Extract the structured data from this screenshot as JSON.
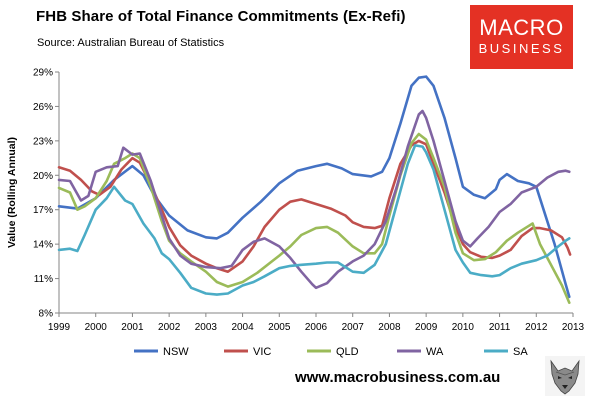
{
  "header": {
    "title": "FHB Share of Total Finance Commitments (Ex-Refi)",
    "subtitle": "Source: Australian Bureau of Statistics"
  },
  "logo": {
    "line1": "MACRO",
    "line2": "BUSINESS",
    "color": "#e43124"
  },
  "footer": {
    "url": "www.macrobusiness.com.au",
    "wolf_icon": "wolf-head-icon"
  },
  "chart_data": {
    "type": "line",
    "ylabel": "Value (Rolling Annual)",
    "xlim": [
      1999,
      2013
    ],
    "ylim": [
      8,
      29
    ],
    "x_ticks": [
      1999,
      2000,
      2001,
      2002,
      2003,
      2004,
      2005,
      2006,
      2007,
      2008,
      2009,
      2010,
      2011,
      2012,
      2013
    ],
    "x_tick_labels": [
      "1999",
      "2000",
      "2001",
      "2002",
      "2003",
      "2004",
      "2005",
      "2006",
      "2007",
      "2008",
      "2009",
      "2010",
      "2011",
      "2012",
      "2013"
    ],
    "y_ticks": [
      8,
      11,
      14,
      17,
      20,
      23,
      26,
      29
    ],
    "y_tick_labels": [
      "8%",
      "11%",
      "14%",
      "17%",
      "20%",
      "23%",
      "26%",
      "29%"
    ],
    "grid": false,
    "legend_position": "bottom",
    "series": [
      {
        "name": "NSW",
        "color": "#4472c4",
        "points": [
          [
            1999.0,
            17.3
          ],
          [
            1999.5,
            17.1
          ],
          [
            2000.0,
            18.0
          ],
          [
            2000.5,
            19.6
          ],
          [
            2001.0,
            20.8
          ],
          [
            2001.3,
            20.0
          ],
          [
            2001.6,
            18.2
          ],
          [
            2002.0,
            16.5
          ],
          [
            2002.5,
            15.2
          ],
          [
            2003.0,
            14.6
          ],
          [
            2003.3,
            14.5
          ],
          [
            2003.6,
            15.0
          ],
          [
            2004.0,
            16.3
          ],
          [
            2004.5,
            17.7
          ],
          [
            2005.0,
            19.3
          ],
          [
            2005.5,
            20.4
          ],
          [
            2006.0,
            20.8
          ],
          [
            2006.3,
            21.0
          ],
          [
            2006.7,
            20.6
          ],
          [
            2007.0,
            20.1
          ],
          [
            2007.5,
            19.9
          ],
          [
            2007.8,
            20.3
          ],
          [
            2008.0,
            21.5
          ],
          [
            2008.3,
            24.5
          ],
          [
            2008.6,
            27.8
          ],
          [
            2008.8,
            28.5
          ],
          [
            2009.0,
            28.6
          ],
          [
            2009.2,
            27.8
          ],
          [
            2009.5,
            25.0
          ],
          [
            2009.8,
            21.5
          ],
          [
            2010.0,
            19.0
          ],
          [
            2010.3,
            18.3
          ],
          [
            2010.6,
            18.0
          ],
          [
            2010.9,
            18.8
          ],
          [
            2011.0,
            19.6
          ],
          [
            2011.2,
            20.1
          ],
          [
            2011.5,
            19.5
          ],
          [
            2011.8,
            19.3
          ],
          [
            2012.0,
            19.0
          ],
          [
            2012.2,
            17.0
          ],
          [
            2012.5,
            14.0
          ],
          [
            2012.8,
            10.5
          ],
          [
            2012.9,
            9.4
          ]
        ]
      },
      {
        "name": "VIC",
        "color": "#c0504d",
        "points": [
          [
            1999.0,
            20.7
          ],
          [
            1999.3,
            20.4
          ],
          [
            1999.6,
            19.6
          ],
          [
            1999.9,
            18.6
          ],
          [
            2000.1,
            18.3
          ],
          [
            2000.4,
            19.0
          ],
          [
            2000.7,
            20.5
          ],
          [
            2001.0,
            21.5
          ],
          [
            2001.2,
            21.1
          ],
          [
            2001.5,
            19.2
          ],
          [
            2001.8,
            17.0
          ],
          [
            2002.0,
            15.5
          ],
          [
            2002.3,
            13.9
          ],
          [
            2002.6,
            13.0
          ],
          [
            2003.0,
            12.3
          ],
          [
            2003.3,
            11.9
          ],
          [
            2003.6,
            11.6
          ],
          [
            2004.0,
            12.5
          ],
          [
            2004.3,
            13.8
          ],
          [
            2004.6,
            15.5
          ],
          [
            2005.0,
            17.0
          ],
          [
            2005.3,
            17.7
          ],
          [
            2005.6,
            17.9
          ],
          [
            2006.0,
            17.5
          ],
          [
            2006.4,
            17.1
          ],
          [
            2006.8,
            16.5
          ],
          [
            2007.0,
            15.9
          ],
          [
            2007.3,
            15.5
          ],
          [
            2007.6,
            15.4
          ],
          [
            2007.8,
            15.6
          ],
          [
            2008.0,
            18.0
          ],
          [
            2008.3,
            21.0
          ],
          [
            2008.6,
            22.6
          ],
          [
            2008.8,
            23.0
          ],
          [
            2009.0,
            22.7
          ],
          [
            2009.2,
            21.0
          ],
          [
            2009.5,
            18.5
          ],
          [
            2009.8,
            15.5
          ],
          [
            2010.0,
            14.0
          ],
          [
            2010.2,
            13.3
          ],
          [
            2010.5,
            12.9
          ],
          [
            2010.8,
            12.8
          ],
          [
            2011.0,
            13.0
          ],
          [
            2011.3,
            13.5
          ],
          [
            2011.6,
            14.7
          ],
          [
            2011.9,
            15.4
          ],
          [
            2012.1,
            15.4
          ],
          [
            2012.4,
            15.2
          ],
          [
            2012.7,
            14.6
          ],
          [
            2012.85,
            13.7
          ],
          [
            2012.92,
            13.1
          ]
        ]
      },
      {
        "name": "QLD",
        "color": "#9bbb59",
        "points": [
          [
            1999.0,
            18.9
          ],
          [
            1999.3,
            18.5
          ],
          [
            1999.5,
            17.0
          ],
          [
            1999.7,
            17.3
          ],
          [
            2000.0,
            18.0
          ],
          [
            2000.3,
            19.5
          ],
          [
            2000.5,
            21.0
          ],
          [
            2000.8,
            21.5
          ],
          [
            2001.0,
            21.9
          ],
          [
            2001.2,
            21.5
          ],
          [
            2001.5,
            19.0
          ],
          [
            2001.8,
            16.0
          ],
          [
            2002.0,
            14.3
          ],
          [
            2002.3,
            13.2
          ],
          [
            2002.6,
            12.5
          ],
          [
            2003.0,
            11.6
          ],
          [
            2003.3,
            10.7
          ],
          [
            2003.6,
            10.3
          ],
          [
            2004.0,
            10.7
          ],
          [
            2004.4,
            11.5
          ],
          [
            2004.8,
            12.5
          ],
          [
            2005.0,
            13.0
          ],
          [
            2005.3,
            13.8
          ],
          [
            2005.6,
            14.8
          ],
          [
            2006.0,
            15.4
          ],
          [
            2006.3,
            15.5
          ],
          [
            2006.6,
            15.0
          ],
          [
            2007.0,
            13.8
          ],
          [
            2007.3,
            13.2
          ],
          [
            2007.6,
            13.2
          ],
          [
            2007.8,
            14.0
          ],
          [
            2008.0,
            16.5
          ],
          [
            2008.3,
            20.0
          ],
          [
            2008.6,
            22.8
          ],
          [
            2008.8,
            23.6
          ],
          [
            2009.0,
            23.1
          ],
          [
            2009.2,
            21.5
          ],
          [
            2009.5,
            19.0
          ],
          [
            2009.8,
            15.0
          ],
          [
            2010.0,
            13.2
          ],
          [
            2010.3,
            12.6
          ],
          [
            2010.6,
            12.7
          ],
          [
            2010.9,
            13.3
          ],
          [
            2011.2,
            14.3
          ],
          [
            2011.5,
            15.0
          ],
          [
            2011.8,
            15.6
          ],
          [
            2011.9,
            15.8
          ],
          [
            2012.1,
            14.0
          ],
          [
            2012.4,
            12.2
          ],
          [
            2012.7,
            10.4
          ],
          [
            2012.9,
            8.9
          ]
        ]
      },
      {
        "name": "WA",
        "color": "#8064a2",
        "points": [
          [
            1999.0,
            19.6
          ],
          [
            1999.3,
            19.5
          ],
          [
            1999.6,
            17.8
          ],
          [
            1999.8,
            18.2
          ],
          [
            2000.0,
            20.3
          ],
          [
            2000.3,
            20.7
          ],
          [
            2000.6,
            20.8
          ],
          [
            2000.75,
            22.4
          ],
          [
            2001.0,
            21.8
          ],
          [
            2001.2,
            21.9
          ],
          [
            2001.5,
            19.5
          ],
          [
            2001.8,
            16.5
          ],
          [
            2002.0,
            14.5
          ],
          [
            2002.3,
            13.0
          ],
          [
            2002.6,
            12.3
          ],
          [
            2003.0,
            12.0
          ],
          [
            2003.4,
            11.9
          ],
          [
            2003.7,
            12.1
          ],
          [
            2004.0,
            13.5
          ],
          [
            2004.3,
            14.2
          ],
          [
            2004.6,
            14.5
          ],
          [
            2005.0,
            13.8
          ],
          [
            2005.3,
            12.8
          ],
          [
            2005.6,
            11.6
          ],
          [
            2005.9,
            10.5
          ],
          [
            2006.0,
            10.2
          ],
          [
            2006.3,
            10.6
          ],
          [
            2006.6,
            11.6
          ],
          [
            2007.0,
            12.5
          ],
          [
            2007.3,
            13.0
          ],
          [
            2007.6,
            14.0
          ],
          [
            2007.9,
            16.0
          ],
          [
            2008.2,
            19.0
          ],
          [
            2008.5,
            22.5
          ],
          [
            2008.8,
            25.3
          ],
          [
            2008.9,
            25.6
          ],
          [
            2009.0,
            25.0
          ],
          [
            2009.2,
            23.0
          ],
          [
            2009.5,
            19.5
          ],
          [
            2009.8,
            16.0
          ],
          [
            2010.0,
            14.3
          ],
          [
            2010.2,
            13.8
          ],
          [
            2010.4,
            14.5
          ],
          [
            2010.7,
            15.5
          ],
          [
            2011.0,
            16.8
          ],
          [
            2011.3,
            17.5
          ],
          [
            2011.6,
            18.5
          ],
          [
            2012.0,
            19.0
          ],
          [
            2012.3,
            19.8
          ],
          [
            2012.6,
            20.3
          ],
          [
            2012.8,
            20.4
          ],
          [
            2012.9,
            20.3
          ]
        ]
      },
      {
        "name": "SA",
        "color": "#4bacc6",
        "points": [
          [
            1999.0,
            13.5
          ],
          [
            1999.3,
            13.6
          ],
          [
            1999.5,
            13.4
          ],
          [
            1999.7,
            14.8
          ],
          [
            2000.0,
            17.0
          ],
          [
            2000.3,
            18.0
          ],
          [
            2000.5,
            19.0
          ],
          [
            2000.8,
            17.8
          ],
          [
            2001.0,
            17.5
          ],
          [
            2001.3,
            15.8
          ],
          [
            2001.6,
            14.5
          ],
          [
            2001.8,
            13.2
          ],
          [
            2002.0,
            12.7
          ],
          [
            2002.3,
            11.5
          ],
          [
            2002.6,
            10.2
          ],
          [
            2003.0,
            9.7
          ],
          [
            2003.3,
            9.6
          ],
          [
            2003.6,
            9.7
          ],
          [
            2004.0,
            10.4
          ],
          [
            2004.3,
            10.7
          ],
          [
            2004.6,
            11.2
          ],
          [
            2005.0,
            11.9
          ],
          [
            2005.3,
            12.1
          ],
          [
            2005.6,
            12.2
          ],
          [
            2006.0,
            12.3
          ],
          [
            2006.3,
            12.4
          ],
          [
            2006.6,
            12.4
          ],
          [
            2007.0,
            11.6
          ],
          [
            2007.3,
            11.5
          ],
          [
            2007.6,
            12.2
          ],
          [
            2007.9,
            14.0
          ],
          [
            2008.2,
            17.5
          ],
          [
            2008.5,
            21.0
          ],
          [
            2008.7,
            22.6
          ],
          [
            2008.9,
            22.5
          ],
          [
            2009.0,
            22.0
          ],
          [
            2009.2,
            20.5
          ],
          [
            2009.5,
            17.0
          ],
          [
            2009.8,
            13.5
          ],
          [
            2010.0,
            12.4
          ],
          [
            2010.2,
            11.5
          ],
          [
            2010.5,
            11.3
          ],
          [
            2010.8,
            11.2
          ],
          [
            2011.0,
            11.3
          ],
          [
            2011.3,
            11.9
          ],
          [
            2011.6,
            12.3
          ],
          [
            2012.0,
            12.6
          ],
          [
            2012.3,
            13.0
          ],
          [
            2012.6,
            13.8
          ],
          [
            2012.8,
            14.3
          ],
          [
            2012.9,
            14.5
          ]
        ]
      }
    ]
  }
}
